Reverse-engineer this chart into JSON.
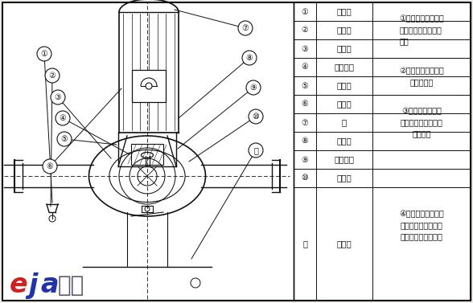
{
  "bg_color": "#f0ede8",
  "border_color": "#222222",
  "table_items": [
    {
      "num": "①",
      "label": "取压塞"
    },
    {
      "num": "②",
      "label": "排气阀"
    },
    {
      "num": "③",
      "label": "叶　轮"
    },
    {
      "num": "④",
      "label": "机械密封"
    },
    {
      "num": "⑤",
      "label": "挡水圈"
    },
    {
      "num": "⑥",
      "label": "电　机"
    },
    {
      "num": "⑦",
      "label": "轴"
    },
    {
      "num": "⑧",
      "label": "联体坐"
    },
    {
      "num": "⑨",
      "label": "叶轮螺母"
    },
    {
      "num": "⑩",
      "label": "泵　体"
    },
    {
      "num": "⑪",
      "label": "放水阀"
    }
  ],
  "desc1": "①泵与电机同端盖，轴向尺寸缩短结构简单。",
  "desc2": "②泵体上设有取压孔和放水孔。",
  "desc3": "③泵体上设有排气阀，工作前能排放泵内空气。",
  "desc4": "④泵体底部设有安装底板和螺栓孔，保证整体机组安装稳固。",
  "logo_e_color": "#cc2222",
  "logo_ja_color": "#2233aa",
  "logo_cn_color": "#555566",
  "line_color": "#111111",
  "fig_width": 5.88,
  "fig_height": 3.77
}
